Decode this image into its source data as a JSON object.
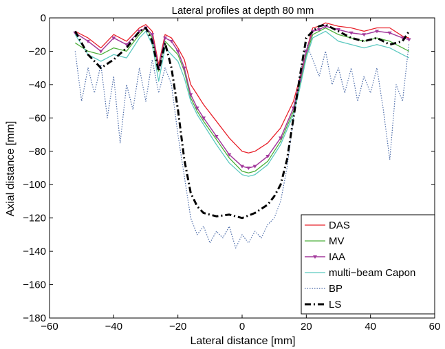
{
  "chart_data": {
    "type": "line",
    "title": "Lateral profiles at depth 80 mm",
    "xlabel": "Lateral distance [mm]",
    "ylabel": "Axial distance [mm]",
    "xlim": [
      -60,
      60
    ],
    "ylim": [
      -180,
      0
    ],
    "xticks": [
      -60,
      -40,
      -20,
      0,
      20,
      40,
      60
    ],
    "yticks": [
      0,
      -20,
      -40,
      -60,
      -80,
      -100,
      -120,
      -140,
      -160,
      -180
    ],
    "xtick_labels": [
      "−60",
      "−40",
      "−20",
      "0",
      "20",
      "40",
      "60"
    ],
    "ytick_labels": [
      "0",
      "−20",
      "−40",
      "−60",
      "−80",
      "−100",
      "−120",
      "−140",
      "−160",
      "−180"
    ],
    "grid": false,
    "legend_position": "bottom-right",
    "series": [
      {
        "name": "DAS",
        "color": "#e8202a",
        "style": "solid",
        "x": [
          -52,
          -48,
          -44,
          -40,
          -36,
          -32,
          -30,
          -28,
          -26,
          -24,
          -22,
          -20,
          -18,
          -16,
          -14,
          -12,
          -8,
          -4,
          0,
          2,
          4,
          8,
          12,
          16,
          18,
          20,
          22,
          24,
          26,
          30,
          34,
          38,
          42,
          46,
          50,
          52
        ],
        "y": [
          -8,
          -12,
          -18,
          -10,
          -14,
          -6,
          -4,
          -8,
          -28,
          -10,
          -12,
          -18,
          -25,
          -40,
          -46,
          -52,
          -62,
          -72,
          -80,
          -81,
          -80,
          -75,
          -66,
          -50,
          -36,
          -20,
          -6,
          -5,
          -3,
          -5,
          -6,
          -8,
          -6,
          -6,
          -11,
          -12
        ]
      },
      {
        "name": "MV",
        "color": "#4caf3a",
        "style": "solid",
        "x": [
          -52,
          -48,
          -44,
          -40,
          -36,
          -32,
          -30,
          -28,
          -26,
          -24,
          -22,
          -20,
          -18,
          -16,
          -14,
          -12,
          -8,
          -4,
          0,
          2,
          4,
          8,
          12,
          16,
          18,
          20,
          22,
          24,
          26,
          30,
          34,
          38,
          42,
          46,
          50,
          52
        ],
        "y": [
          -15,
          -20,
          -22,
          -18,
          -20,
          -10,
          -6,
          -12,
          -32,
          -14,
          -18,
          -22,
          -32,
          -48,
          -56,
          -62,
          -73,
          -84,
          -92,
          -93,
          -92,
          -86,
          -74,
          -56,
          -40,
          -22,
          -10,
          -8,
          -6,
          -10,
          -12,
          -14,
          -12,
          -14,
          -18,
          -20
        ]
      },
      {
        "name": "IAA",
        "color": "#a33a9c",
        "style": "solid-marker",
        "x": [
          -52,
          -48,
          -44,
          -40,
          -36,
          -32,
          -30,
          -28,
          -26,
          -24,
          -22,
          -20,
          -18,
          -16,
          -14,
          -12,
          -8,
          -4,
          0,
          2,
          4,
          8,
          12,
          16,
          18,
          20,
          22,
          24,
          26,
          30,
          34,
          38,
          42,
          46,
          50,
          52
        ],
        "y": [
          -9,
          -14,
          -20,
          -12,
          -16,
          -8,
          -6,
          -10,
          -30,
          -12,
          -14,
          -20,
          -30,
          -46,
          -54,
          -60,
          -71,
          -82,
          -89,
          -90,
          -89,
          -83,
          -72,
          -54,
          -38,
          -20,
          -8,
          -7,
          -5,
          -7,
          -9,
          -10,
          -8,
          -9,
          -12,
          -13
        ]
      },
      {
        "name": "multi−beam Capon",
        "color": "#5cc9c0",
        "style": "solid",
        "x": [
          -52,
          -48,
          -44,
          -40,
          -36,
          -32,
          -30,
          -28,
          -26,
          -24,
          -22,
          -20,
          -18,
          -16,
          -14,
          -12,
          -8,
          -4,
          0,
          2,
          4,
          8,
          12,
          16,
          18,
          20,
          22,
          24,
          26,
          30,
          34,
          38,
          42,
          46,
          50,
          52
        ],
        "y": [
          -10,
          -22,
          -26,
          -22,
          -24,
          -12,
          -8,
          -16,
          -38,
          -18,
          -22,
          -26,
          -36,
          -50,
          -58,
          -64,
          -76,
          -87,
          -94,
          -95,
          -94,
          -88,
          -76,
          -58,
          -42,
          -24,
          -12,
          -10,
          -8,
          -14,
          -16,
          -18,
          -16,
          -18,
          -22,
          -24
        ]
      },
      {
        "name": "BP",
        "color": "#4a6aa8",
        "style": "dotted",
        "x": [
          -52,
          -50,
          -48,
          -46,
          -44,
          -42,
          -40,
          -38,
          -36,
          -34,
          -32,
          -30,
          -28,
          -26,
          -24,
          -22,
          -20,
          -18,
          -16,
          -14,
          -12,
          -10,
          -8,
          -6,
          -4,
          -2,
          0,
          2,
          4,
          6,
          8,
          10,
          12,
          14,
          16,
          18,
          20,
          22,
          24,
          26,
          28,
          30,
          32,
          34,
          36,
          38,
          40,
          42,
          44,
          46,
          48,
          50,
          52
        ],
        "y": [
          -20,
          -50,
          -30,
          -45,
          -28,
          -60,
          -35,
          -75,
          -40,
          -55,
          -30,
          -50,
          -25,
          -45,
          -30,
          -40,
          -70,
          -95,
          -120,
          -130,
          -125,
          -135,
          -128,
          -132,
          -125,
          -138,
          -130,
          -135,
          -128,
          -132,
          -124,
          -120,
          -110,
          -90,
          -60,
          -35,
          -15,
          -25,
          -35,
          -20,
          -40,
          -30,
          -45,
          -30,
          -50,
          -35,
          -45,
          -30,
          -55,
          -85,
          -40,
          -50,
          -15
        ]
      },
      {
        "name": "LS",
        "color": "#000000",
        "style": "dashdot",
        "x": [
          -52,
          -48,
          -44,
          -40,
          -36,
          -32,
          -30,
          -28,
          -26,
          -24,
          -22,
          -20,
          -18,
          -16,
          -14,
          -12,
          -10,
          -8,
          -4,
          0,
          4,
          8,
          10,
          12,
          14,
          16,
          18,
          20,
          22,
          24,
          26,
          30,
          34,
          38,
          42,
          46,
          50,
          52
        ],
        "y": [
          -8,
          -22,
          -30,
          -25,
          -18,
          -8,
          -6,
          -14,
          -32,
          -15,
          -30,
          -55,
          -85,
          -105,
          -113,
          -117,
          -118,
          -119,
          -118,
          -120,
          -117,
          -112,
          -107,
          -100,
          -85,
          -60,
          -35,
          -12,
          -8,
          -5,
          -4,
          -8,
          -12,
          -14,
          -12,
          -16,
          -14,
          -8
        ]
      }
    ]
  }
}
